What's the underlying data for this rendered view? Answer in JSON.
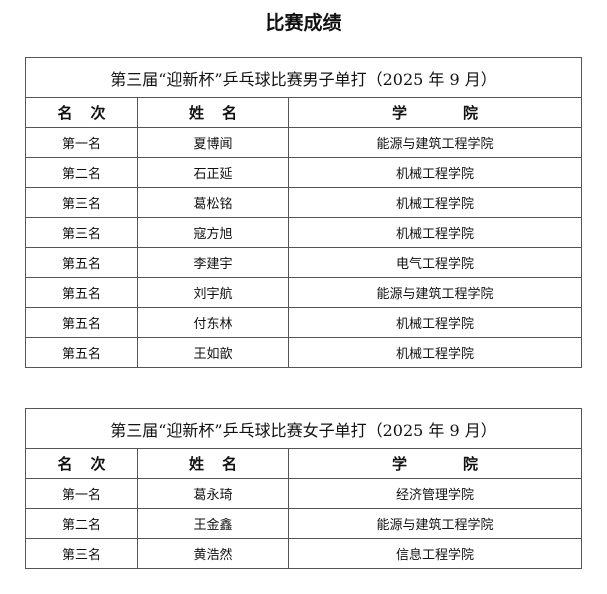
{
  "page_title": "比赛成绩",
  "headers": {
    "rank": [
      "名",
      "次"
    ],
    "name": [
      "姓",
      "名"
    ],
    "college": [
      "学",
      "院"
    ]
  },
  "tables": [
    {
      "caption": "第三届“迎新杯”乒乓球比赛男子单打（2025 年 9 月）",
      "rows": [
        {
          "rank": "第一名",
          "name": "夏博闻",
          "college": "能源与建筑工程学院"
        },
        {
          "rank": "第二名",
          "name": "石正延",
          "college": "机械工程学院"
        },
        {
          "rank": "第三名",
          "name": "葛松铭",
          "college": "机械工程学院"
        },
        {
          "rank": "第三名",
          "name": "寇方旭",
          "college": "机械工程学院"
        },
        {
          "rank": "第五名",
          "name": "李建宇",
          "college": "电气工程学院"
        },
        {
          "rank": "第五名",
          "name": "刘宇航",
          "college": "能源与建筑工程学院"
        },
        {
          "rank": "第五名",
          "name": "付东林",
          "college": "机械工程学院"
        },
        {
          "rank": "第五名",
          "name": "王如歆",
          "college": "机械工程学院"
        }
      ]
    },
    {
      "caption": "第三届“迎新杯”乒乓球比赛女子单打（2025 年 9 月）",
      "rows": [
        {
          "rank": "第一名",
          "name": "葛永琦",
          "college": "经济管理学院"
        },
        {
          "rank": "第二名",
          "name": "王金鑫",
          "college": "能源与建筑工程学院"
        },
        {
          "rank": "第三名",
          "name": "黄浩然",
          "college": "信息工程学院"
        }
      ]
    }
  ]
}
